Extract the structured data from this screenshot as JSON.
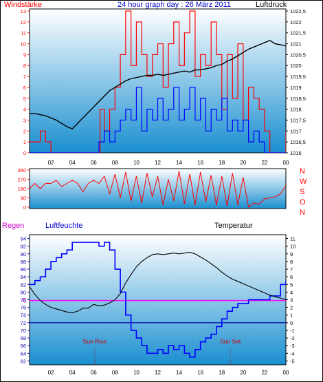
{
  "header": {
    "left_label": "Windstärke",
    "title": "24 hour graph day : 26 März 2011",
    "right_label": "Luftdruck"
  },
  "colors": {
    "wind": "#ff0000",
    "gust": "#0000ff",
    "pressure": "#000000",
    "humidity": "#0000ff",
    "temperature": "#000000",
    "rain": "#ff00ff",
    "zero_line": "#0000aa",
    "plot_top": "#ffffff",
    "plot_bottom": "#1a8fd0",
    "axis_wind": "#ff0000",
    "axis_humidity": "#0000aa"
  },
  "x_axis": {
    "ticks": [
      "02",
      "04",
      "06",
      "08",
      "10",
      "12",
      "14",
      "16",
      "18",
      "20",
      "22",
      "00"
    ]
  },
  "panels": {
    "direction_labels": [
      "N",
      "W",
      "S",
      "O",
      "N"
    ],
    "bottom_left_label": "Regen",
    "bottom_humidity_label": "Luftfeuchte",
    "bottom_right_label": "Temperatur",
    "sun_rise_label": "Sun Rise",
    "sun_set_label": "Sun Set"
  },
  "chart_data": [
    {
      "type": "line",
      "name": "wind-pressure",
      "x_unit": "hour",
      "xlim": [
        0,
        24
      ],
      "y_left": {
        "label": "Windstärke",
        "ylim": [
          0,
          13
        ],
        "ticks": [
          "0",
          "1",
          "2",
          "3",
          "4",
          "5",
          "6",
          "7",
          "8",
          "9",
          "10",
          "11",
          "12",
          "13"
        ]
      },
      "y_right": {
        "label": "Luftdruck",
        "ylim": [
          1016,
          1022.5
        ],
        "ticks": [
          "1016",
          "1016,5",
          "1017",
          "1017,5",
          "1018",
          "1018,5",
          "1019",
          "1019,5",
          "1020",
          "1020,5",
          "1021",
          "1021,5",
          "1022",
          "1022,5"
        ]
      },
      "series": [
        {
          "axis": "left",
          "x": [
            0,
            0.5,
            1,
            1.5,
            2,
            2.5,
            3,
            3.5,
            4,
            4.5,
            5,
            5.5,
            6,
            6.3,
            6.6,
            7,
            7.5,
            8,
            8.5,
            9,
            9.5,
            10,
            10.5,
            11,
            11.5,
            12,
            12.5,
            13,
            13.5,
            14,
            14.5,
            15,
            15.5,
            16,
            16.5,
            17,
            17.5,
            18,
            18.5,
            19,
            19.5,
            20,
            20.5,
            21,
            21.5,
            22,
            22.5,
            23,
            23.5,
            24
          ],
          "y": [
            1,
            1,
            2,
            1,
            0,
            0,
            0,
            0,
            0,
            0,
            0,
            0,
            0,
            0,
            4,
            2,
            4,
            6,
            9,
            13,
            8,
            12,
            9,
            7,
            9,
            10,
            6,
            10,
            12,
            8,
            11,
            13,
            7,
            9,
            8,
            12,
            9,
            4,
            9,
            5,
            10,
            3,
            6,
            5,
            4,
            2,
            0,
            0,
            0,
            2
          ]
        },
        {
          "axis": "left",
          "x": [
            0,
            6,
            6.5,
            7,
            7.5,
            8,
            8.5,
            9,
            9.5,
            10,
            10.5,
            11,
            11.5,
            12,
            12.5,
            13,
            13.5,
            14,
            14.5,
            15,
            15.5,
            16,
            16.5,
            17,
            17.5,
            18,
            18.5,
            19,
            19.5,
            20,
            20.5,
            21,
            21.5,
            22,
            24
          ],
          "y": [
            0,
            0,
            1,
            2,
            1,
            2,
            3,
            4,
            3,
            6,
            2,
            4,
            3,
            5,
            3,
            4,
            6,
            3,
            4,
            6,
            3,
            5,
            2,
            4,
            3,
            5,
            2,
            3,
            2,
            3,
            1,
            2,
            1,
            0,
            0
          ]
        },
        {
          "axis": "right",
          "x": [
            0,
            0.5,
            1,
            1.5,
            2,
            2.5,
            3,
            3.5,
            4,
            4.5,
            5,
            5.5,
            6,
            6.5,
            7,
            7.5,
            8,
            8.5,
            9,
            9.5,
            10,
            10.5,
            11,
            11.5,
            12,
            12.5,
            13,
            13.5,
            14,
            14.5,
            15,
            15.5,
            16,
            16.5,
            17,
            17.5,
            18,
            18.5,
            19,
            19.5,
            20,
            20.5,
            21,
            21.5,
            22,
            22.5,
            23,
            23.5,
            24
          ],
          "y": [
            1017.8,
            1017.8,
            1017.75,
            1017.7,
            1017.6,
            1017.5,
            1017.35,
            1017.2,
            1017.1,
            1017.35,
            1017.6,
            1017.85,
            1018.1,
            1018.35,
            1018.6,
            1018.85,
            1019.0,
            1019.15,
            1019.3,
            1019.4,
            1019.45,
            1019.5,
            1019.55,
            1019.55,
            1019.6,
            1019.55,
            1019.6,
            1019.65,
            1019.7,
            1019.75,
            1019.7,
            1019.8,
            1019.8,
            1019.85,
            1019.9,
            1020.0,
            1020.05,
            1020.2,
            1020.3,
            1020.45,
            1020.6,
            1020.75,
            1020.85,
            1020.95,
            1021.05,
            1021.15,
            1021.0,
            1020.95,
            1020.9
          ]
        }
      ]
    },
    {
      "type": "line",
      "name": "wind-direction",
      "x_unit": "hour",
      "xlim": [
        0,
        24
      ],
      "ylim": [
        0,
        360
      ],
      "y_ticks": [
        "0",
        "90",
        "180",
        "270",
        "360"
      ],
      "series": [
        {
          "x": [
            0,
            0.5,
            1,
            1.5,
            2,
            2.5,
            3,
            3.5,
            4,
            4.5,
            5,
            5.5,
            6,
            6.5,
            7,
            7.5,
            8,
            8.5,
            9,
            9.5,
            10,
            10.5,
            11,
            11.5,
            12,
            12.5,
            13,
            13.5,
            14,
            14.5,
            15,
            15.5,
            16,
            16.5,
            17,
            17.5,
            18,
            18.5,
            19,
            19.5,
            20,
            20.5,
            21,
            21.5,
            22,
            22.5,
            23,
            23.5,
            24
          ],
          "y": [
            180,
            230,
            180,
            230,
            230,
            260,
            200,
            230,
            260,
            230,
            150,
            230,
            260,
            230,
            300,
            130,
            320,
            90,
            340,
            60,
            300,
            40,
            330,
            100,
            300,
            20,
            270,
            60,
            350,
            30,
            320,
            20,
            340,
            50,
            310,
            20,
            300,
            10,
            330,
            20,
            290,
            0,
            40,
            30,
            80,
            90,
            100,
            130,
            210
          ]
        }
      ]
    },
    {
      "type": "line",
      "name": "humidity-temperature",
      "x_unit": "hour",
      "xlim": [
        0,
        24
      ],
      "y_left": {
        "label": "Luftfeuchte",
        "ylim": [
          61,
          95
        ],
        "ticks": [
          "62",
          "64",
          "66",
          "68",
          "70",
          "72",
          "74",
          "76",
          "78",
          "80",
          "82",
          "84",
          "86",
          "88",
          "90",
          "92",
          "94"
        ]
      },
      "y_right": {
        "label": "Temperatur",
        "ylim": [
          -5.5,
          11.5
        ],
        "ticks": [
          "-5",
          "-4",
          "-3",
          "-2",
          "-1",
          "0",
          "1",
          "2",
          "3",
          "4",
          "5",
          "6",
          "7",
          "8",
          "9",
          "10",
          "11"
        ]
      },
      "rain_marker": "0",
      "sun_rise_hour": 6.1,
      "sun_set_hour": 18.8,
      "series": [
        {
          "axis": "left",
          "x": [
            0,
            0.5,
            1,
            1.5,
            2,
            2.5,
            3,
            3.5,
            4,
            4.5,
            5,
            5.5,
            6,
            6.5,
            7,
            7.5,
            8,
            8.5,
            9,
            9.5,
            10,
            10.5,
            11,
            11.5,
            12,
            12.5,
            13,
            13.5,
            14,
            14.5,
            15,
            15.5,
            16,
            16.5,
            17,
            17.5,
            18,
            18.5,
            19,
            19.5,
            20,
            20.5,
            21,
            21.5,
            22,
            22.5,
            23,
            23.5,
            24
          ],
          "y": [
            82,
            83,
            84,
            86,
            88,
            89,
            90,
            91,
            93,
            93,
            93,
            93,
            93,
            92,
            93,
            91,
            86,
            80,
            74,
            70,
            68,
            66,
            64,
            64,
            65,
            64,
            66,
            65,
            66,
            64,
            63,
            65,
            67,
            68,
            69,
            71,
            73,
            75,
            76,
            77,
            77,
            78,
            78,
            78,
            78,
            79,
            79,
            82,
            83
          ]
        },
        {
          "axis": "right",
          "x": [
            0,
            0.5,
            1,
            1.5,
            2,
            2.5,
            3,
            3.5,
            4,
            4.5,
            5,
            5.5,
            6,
            6.5,
            7,
            7.5,
            8,
            8.5,
            9,
            9.5,
            10,
            10.5,
            11,
            11.5,
            12,
            12.5,
            13,
            13.5,
            14,
            14.5,
            15,
            15.5,
            16,
            16.5,
            17,
            17.5,
            18,
            18.5,
            19,
            19.5,
            20,
            20.5,
            21,
            21.5,
            22,
            22.5,
            23,
            23.5,
            24
          ],
          "y": [
            4.7,
            3.7,
            2.9,
            2.4,
            2.0,
            1.8,
            1.6,
            1.4,
            1.3,
            1.5,
            1.9,
            1.9,
            2.4,
            2.2,
            2.3,
            2.6,
            3.0,
            3.8,
            5.2,
            6.3,
            7.3,
            8.0,
            8.5,
            8.9,
            9.0,
            8.9,
            9.0,
            9.1,
            9.0,
            9.1,
            9.2,
            9.0,
            8.6,
            8.2,
            7.7,
            7.2,
            6.6,
            6.1,
            5.7,
            5.4,
            5.1,
            4.8,
            4.5,
            4.2,
            3.9,
            3.6,
            3.4,
            3.2,
            3.0
          ]
        },
        {
          "axis": "right",
          "x": [
            0,
            24
          ],
          "y": [
            2.9,
            2.9
          ]
        },
        {
          "axis": "right",
          "x": [
            0,
            24
          ],
          "y": [
            0,
            0
          ]
        }
      ]
    }
  ]
}
